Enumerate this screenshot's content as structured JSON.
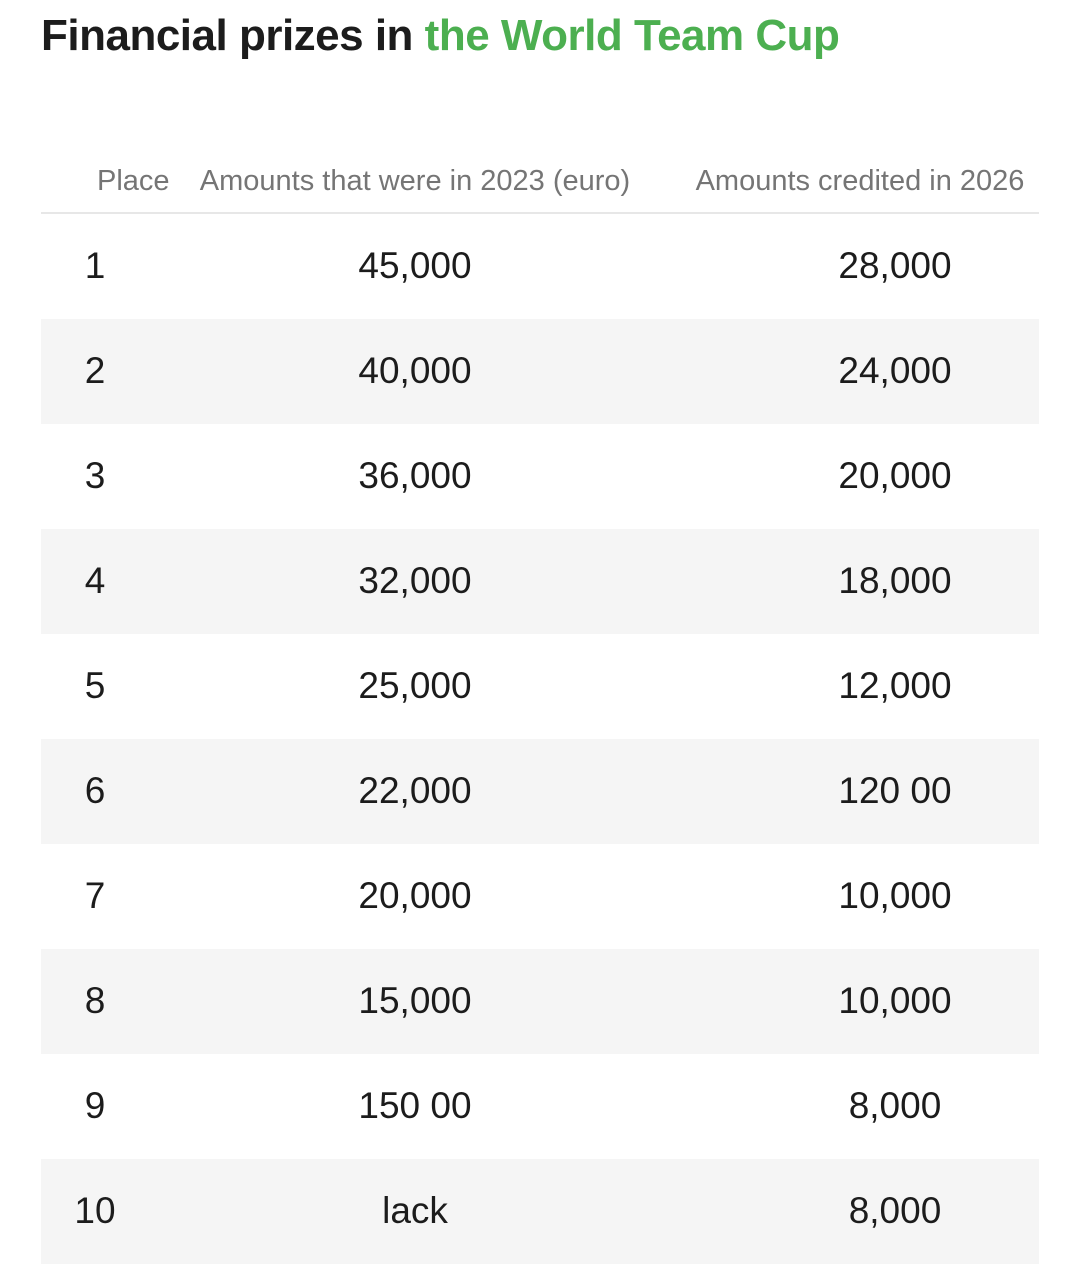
{
  "page": {
    "title": {
      "prefix": "Financial prizes in ",
      "highlight": "the World Team Cup"
    },
    "colors": {
      "title_text": "#1c1c1c",
      "title_highlight_green": "#4caf50",
      "header_text_gray": "#757575",
      "cell_text": "#1c1c1c",
      "stripe_background": "#f5f5f5",
      "header_rule": "#e7e7e7"
    }
  },
  "table": {
    "columns": [
      "Place",
      "Amounts that were in 2023 (euro)",
      "Amounts credited in 2026"
    ],
    "rows": [
      [
        "1",
        "45,000",
        "28,000"
      ],
      [
        "2",
        "40,000",
        "24,000"
      ],
      [
        "3",
        "36,000",
        "20,000"
      ],
      [
        "4",
        "32,000",
        "18,000"
      ],
      [
        "5",
        "25,000",
        "12,000"
      ],
      [
        "6",
        "22,000",
        "120 00"
      ],
      [
        "7",
        "20,000",
        "10,000"
      ],
      [
        "8",
        "15,000",
        "10,000"
      ],
      [
        "9",
        "150 00",
        "8,000"
      ],
      [
        "10",
        "lack",
        "8,000"
      ]
    ]
  }
}
